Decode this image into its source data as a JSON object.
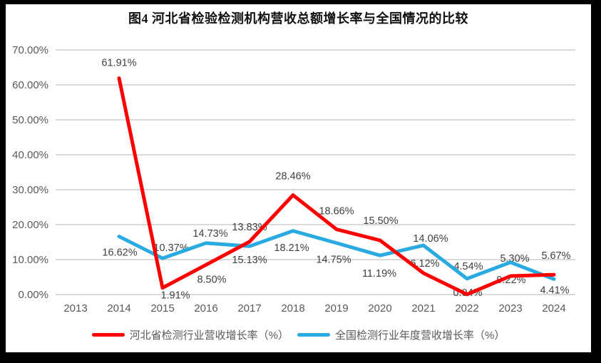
{
  "frame": {
    "border_color": "#000000",
    "panel_background": "#FFFFFF"
  },
  "chart_data": {
    "type": "line",
    "title": "图4 河北省检验检测机构营收总额增长率与全国情况的比较",
    "xlabel": "",
    "ylabel": "",
    "ylim": [
      0,
      70
    ],
    "grid": "horizontal-only",
    "gridline_color": "#D9D9D9",
    "axis_text_color": "#595959",
    "label_text_color": "#404040",
    "legend_position": "bottom",
    "x_categories": [
      "2013",
      "2014",
      "2015",
      "2016",
      "2017",
      "2018",
      "2019",
      "2020",
      "2021",
      "2022",
      "2023",
      "2024"
    ],
    "y_ticks": [
      {
        "value": 0,
        "label": "0.00%"
      },
      {
        "value": 10,
        "label": "10.00%"
      },
      {
        "value": 20,
        "label": "20.00%"
      },
      {
        "value": 30,
        "label": "30.00%"
      },
      {
        "value": 40,
        "label": "40.00%"
      },
      {
        "value": 50,
        "label": "50.00%"
      },
      {
        "value": 60,
        "label": "60.00%"
      },
      {
        "value": 70,
        "label": "70.00%"
      }
    ],
    "series": [
      {
        "name": "全国检测行业年度营收增长率（%）",
        "color": "#29ABE2",
        "points": [
          {
            "year": "2014",
            "value": 16.62,
            "label": "16.62%",
            "dx": 1,
            "dy": 22
          },
          {
            "year": "2015",
            "value": 10.37,
            "label": "10.37%",
            "dx": 12,
            "dy": -15
          },
          {
            "year": "2016",
            "value": 14.73,
            "label": "14.73%",
            "dx": 6,
            "dy": -14
          },
          {
            "year": "2017",
            "value": 13.83,
            "label": "13.83%",
            "dx": 0,
            "dy": -27
          },
          {
            "year": "2018",
            "value": 18.21,
            "label": "18.21%",
            "dx": -2,
            "dy": 23
          },
          {
            "year": "2019",
            "value": 14.75,
            "label": "14.75%",
            "dx": -4,
            "dy": 23
          },
          {
            "year": "2020",
            "value": 11.19,
            "label": "11.19%",
            "dx": -1,
            "dy": 25
          },
          {
            "year": "2021",
            "value": 14.06,
            "label": "14.06%",
            "dx": 10,
            "dy": -10
          },
          {
            "year": "2022",
            "value": 4.54,
            "label": "4.54%",
            "dx": 2,
            "dy": -18
          },
          {
            "year": "2023",
            "value": 9.22,
            "label": "9.22%",
            "dx": 1,
            "dy": 24
          },
          {
            "year": "2024",
            "value": 4.41,
            "label": "4.41%",
            "dx": 1,
            "dy": 15
          }
        ]
      },
      {
        "name": "河北省检测行业营收增长率（%）",
        "color": "#FF0000",
        "points": [
          {
            "year": "2014",
            "value": 61.91,
            "label": "61.91%",
            "dx": 0,
            "dy": -22
          },
          {
            "year": "2015",
            "value": 1.91,
            "label": "1.91%",
            "dx": 18,
            "dy": 10
          },
          {
            "year": "2016",
            "value": 8.5,
            "label": "8.50%",
            "dx": 8,
            "dy": 20
          },
          {
            "year": "2017",
            "value": 15.13,
            "label": "15.13%",
            "dx": 0,
            "dy": 25
          },
          {
            "year": "2018",
            "value": 28.46,
            "label": "28.46%",
            "dx": 0,
            "dy": -27
          },
          {
            "year": "2019",
            "value": 18.66,
            "label": "18.66%",
            "dx": 0,
            "dy": -26
          },
          {
            "year": "2020",
            "value": 15.5,
            "label": "15.50%",
            "dx": 1,
            "dy": -28
          },
          {
            "year": "2021",
            "value": 6.12,
            "label": "6.12%",
            "dx": 2,
            "dy": -14
          },
          {
            "year": "2022",
            "value": 0.04,
            "label": "0.04%",
            "dx": 1,
            "dy": -3
          },
          {
            "year": "2023",
            "value": 5.3,
            "label": "5.30%",
            "dx": 6,
            "dy": -25
          },
          {
            "year": "2024",
            "value": 5.67,
            "label": "5.67%",
            "dx": 3,
            "dy": -27
          }
        ]
      }
    ]
  }
}
